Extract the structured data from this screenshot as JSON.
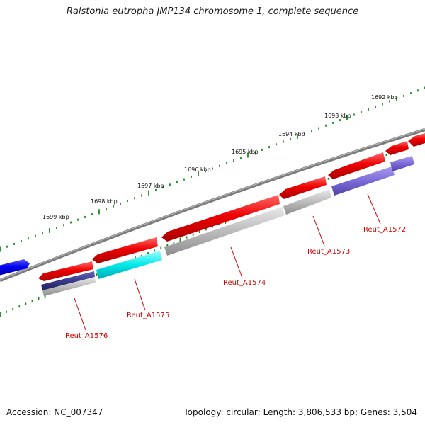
{
  "title": "Ralstonia eutropha JMP134 chromosome 1, complete sequence",
  "footer": {
    "accession": "Accession: NC_007347",
    "summary": "Topology: circular; Length: 3,806,533 bp; Genes: 3,504"
  },
  "ruler": {
    "tick_color": "#1a8a1a",
    "labels": [
      "1699 kbp",
      "1698 kbp",
      "1697 kbp",
      "1696 kbp",
      "1695 kbp",
      "1694 kbp",
      "1693 kbp",
      "1692 kbp"
    ]
  },
  "genes": {
    "labels": [
      "Reut_A1576",
      "Reut_A1575",
      "Reut_A1574",
      "Reut_A1573",
      "Reut_A1572"
    ]
  },
  "colors": {
    "backbone": "#8c8c8c",
    "forward_feature": "#e80000",
    "reverse_strand_feature": "#0000ee",
    "gene_grey": "#b8b8b8",
    "gene_cyan": "#00e8e8",
    "gene_purple": "#7b6ad8",
    "gene_navy": "#3a3a8c",
    "label_red": "#d40000"
  }
}
